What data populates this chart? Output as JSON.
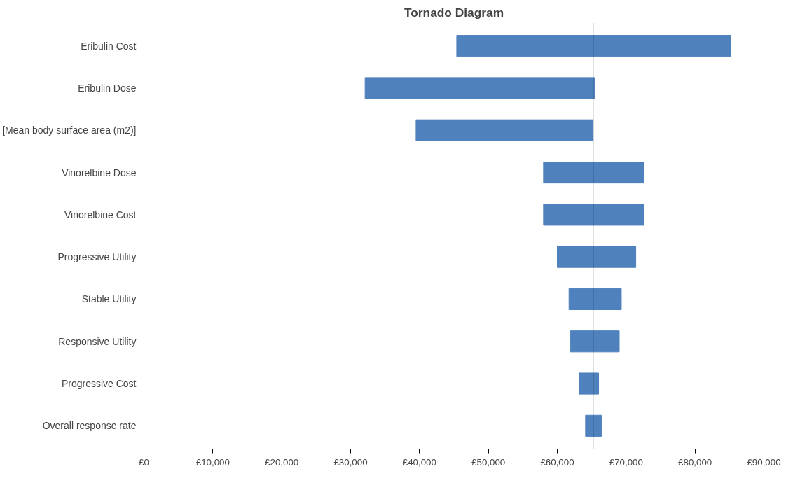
{
  "chart_data": {
    "type": "bar",
    "title": "Tornado Diagram",
    "orientation": "horizontal",
    "categories": [
      "Eribulin Cost",
      "Eribulin Dose",
      "[Mean body surface area (m2)]",
      "Vinorelbine Dose",
      "Vinorelbine Cost",
      "Progressive Utility",
      "Stable Utility",
      "Responsive Utility",
      "Progressive Cost",
      "Overall response rate"
    ],
    "base": [
      45400,
      32100,
      39500,
      58000,
      58000,
      60000,
      61700,
      61900,
      63200,
      64100
    ],
    "values": [
      39800,
      33300,
      25700,
      14600,
      14600,
      11400,
      7600,
      7100,
      2800,
      2300
    ],
    "color": "#4f81bd",
    "xlim": [
      0,
      90000
    ],
    "xticks": [
      {
        "value": 0,
        "label": "£0"
      },
      {
        "value": 10000,
        "label": "£10,000"
      },
      {
        "value": 20000,
        "label": "£20,000"
      },
      {
        "value": 30000,
        "label": "£30,000"
      },
      {
        "value": 40000,
        "label": "£40,000"
      },
      {
        "value": 50000,
        "label": "£50,000"
      },
      {
        "value": 60000,
        "label": "£60,000"
      },
      {
        "value": 70000,
        "label": "£70,000"
      },
      {
        "value": 80000,
        "label": "£80,000"
      },
      {
        "value": 90000,
        "label": "£90,000"
      }
    ],
    "ref_lines": [
      {
        "axis": "x",
        "value": 65200,
        "color": "#000000"
      }
    ],
    "grid": false
  }
}
